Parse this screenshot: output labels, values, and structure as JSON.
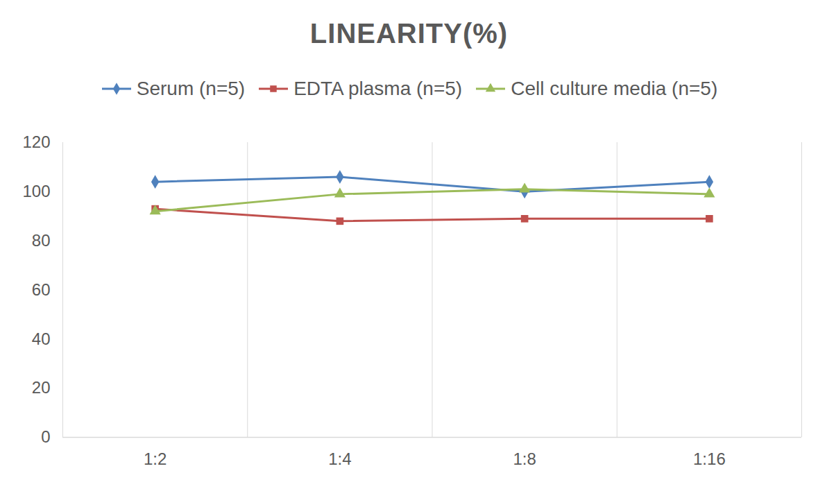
{
  "chart_data": {
    "type": "line",
    "title": "LINEARITY(%)",
    "categories": [
      "1:2",
      "1:4",
      "1:8",
      "1:16"
    ],
    "series": [
      {
        "name": "Serum (n=5)",
        "color": "#4f81bd",
        "marker": "diamond",
        "values": [
          104,
          106,
          100,
          104
        ]
      },
      {
        "name": "EDTA plasma (n=5)",
        "color": "#c0504d",
        "marker": "square",
        "values": [
          93,
          88,
          89,
          89
        ]
      },
      {
        "name": "Cell culture media (n=5)",
        "color": "#9bbb59",
        "marker": "triangle",
        "values": [
          92,
          99,
          101,
          99
        ]
      }
    ],
    "ylim": [
      0,
      120
    ],
    "yticks": [
      0,
      20,
      40,
      60,
      80,
      100,
      120
    ],
    "grid": true,
    "legend": "top"
  }
}
